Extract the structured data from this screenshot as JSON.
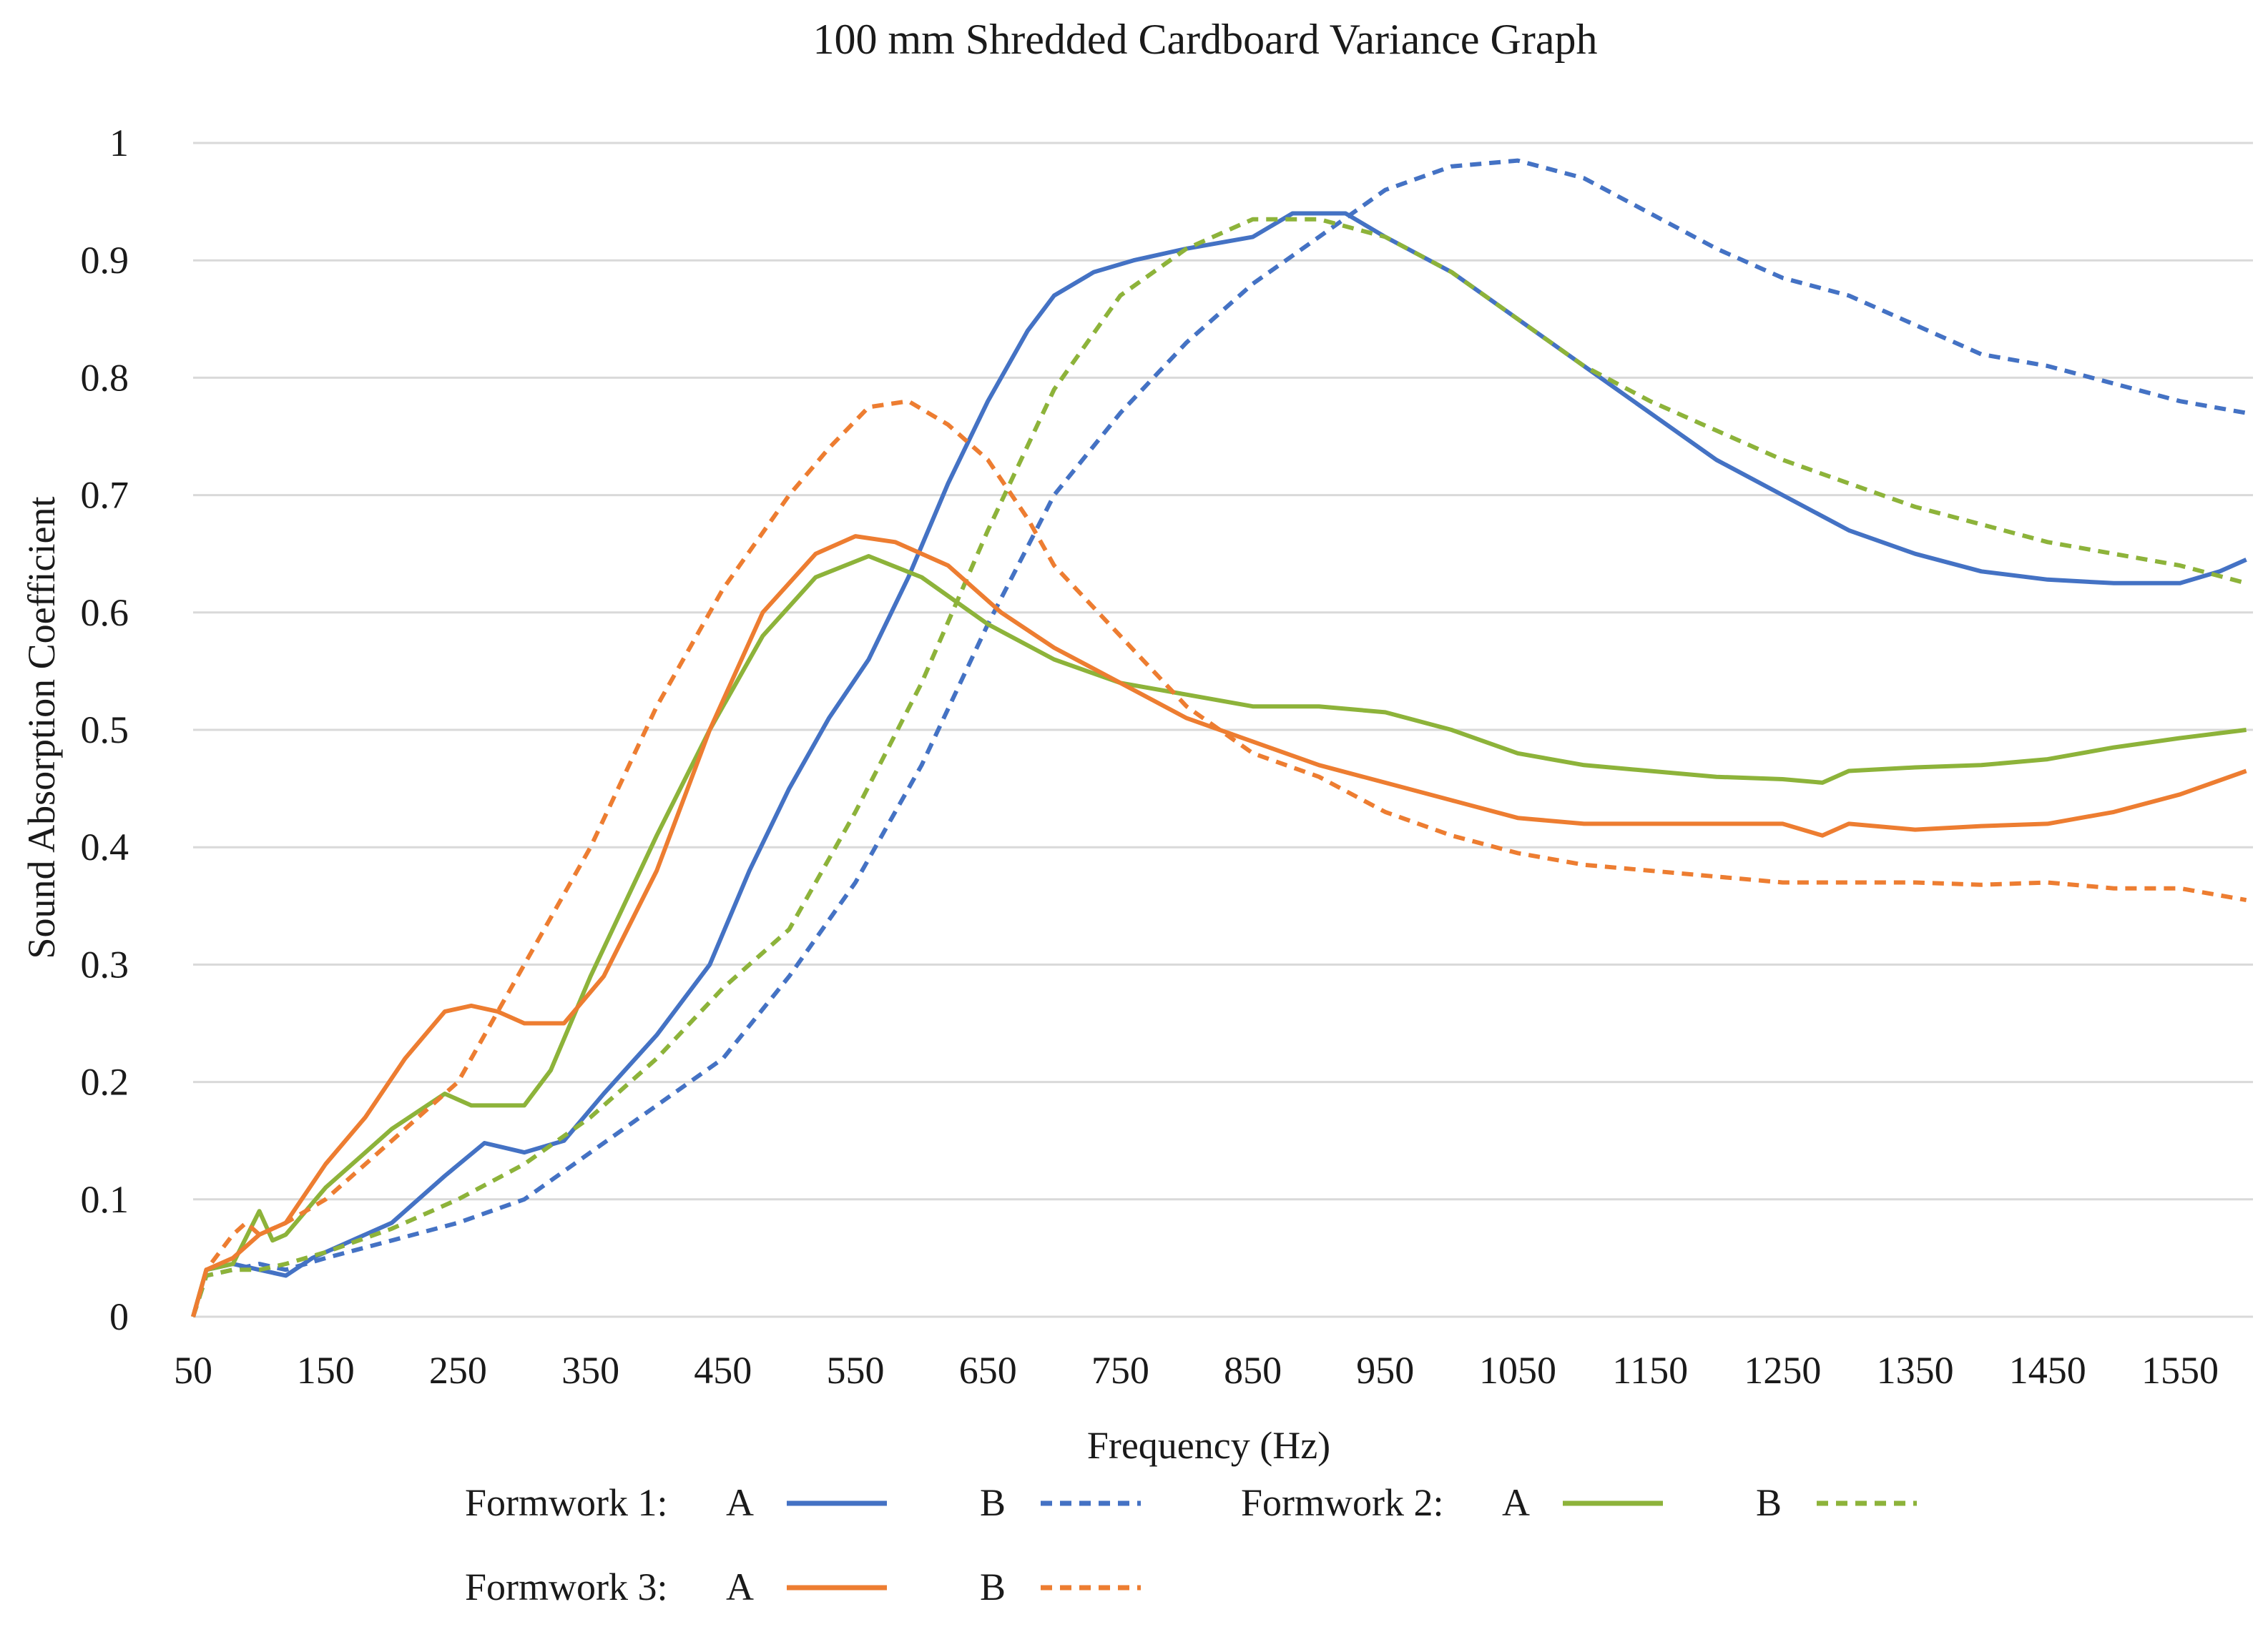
{
  "chart_data": {
    "type": "line",
    "title": "100 mm Shredded Cardboard Variance Graph",
    "xlabel": "Frequency (Hz)",
    "ylabel": "Sound Absorption Coefficient",
    "xlim": [
      50,
      1600
    ],
    "ylim": [
      0,
      1
    ],
    "grid": true,
    "legend_position": "bottom",
    "x_ticks": [
      50,
      150,
      250,
      350,
      450,
      550,
      650,
      750,
      850,
      950,
      1050,
      1150,
      1250,
      1350,
      1450,
      1550
    ],
    "x_tick_labels": [
      "50",
      "150",
      "250",
      "350",
      "450",
      "550",
      "650",
      "750",
      "850",
      "950",
      "1050",
      "1150",
      "1250",
      "1350",
      "1450",
      "1550"
    ],
    "y_ticks": [
      0,
      0.1,
      0.2,
      0.3,
      0.4,
      0.5,
      0.6,
      0.7,
      0.8,
      0.9,
      1
    ],
    "y_tick_labels": [
      "0",
      "0.1",
      "0.2",
      "0.3",
      "0.4",
      "0.5",
      "0.6",
      "0.7",
      "0.8",
      "0.9",
      "1"
    ],
    "legend_groups": [
      {
        "label": "Formwork 1:",
        "items": [
          {
            "label": "A",
            "series": 0
          },
          {
            "label": "B",
            "series": 1
          }
        ]
      },
      {
        "label": "Formwork 2:",
        "items": [
          {
            "label": "A",
            "series": 2
          },
          {
            "label": "B",
            "series": 3
          }
        ]
      },
      {
        "label": "Formwork 3:",
        "items": [
          {
            "label": "A",
            "series": 4
          },
          {
            "label": "B",
            "series": 5
          }
        ]
      }
    ],
    "series": [
      {
        "name": "Formwork 1: A",
        "color": "#4472C4",
        "dash": "solid",
        "x": [
          50,
          60,
          80,
          100,
          120,
          140,
          160,
          200,
          240,
          270,
          300,
          330,
          360,
          400,
          440,
          470,
          500,
          530,
          560,
          590,
          620,
          650,
          680,
          700,
          730,
          760,
          800,
          850,
          880,
          920,
          950,
          1000,
          1050,
          1100,
          1150,
          1200,
          1250,
          1300,
          1350,
          1400,
          1450,
          1500,
          1550,
          1580,
          1600
        ],
        "y": [
          0.0,
          0.04,
          0.045,
          0.04,
          0.035,
          0.05,
          0.06,
          0.08,
          0.12,
          0.148,
          0.14,
          0.15,
          0.19,
          0.24,
          0.3,
          0.38,
          0.45,
          0.51,
          0.56,
          0.63,
          0.71,
          0.78,
          0.84,
          0.87,
          0.89,
          0.9,
          0.91,
          0.92,
          0.94,
          0.94,
          0.92,
          0.89,
          0.85,
          0.81,
          0.77,
          0.73,
          0.7,
          0.67,
          0.65,
          0.635,
          0.628,
          0.625,
          0.625,
          0.635,
          0.645
        ]
      },
      {
        "name": "Formwork 1: B",
        "color": "#4472C4",
        "dash": "dashed",
        "x": [
          50,
          60,
          80,
          100,
          120,
          150,
          200,
          250,
          300,
          350,
          400,
          450,
          500,
          550,
          600,
          650,
          700,
          750,
          800,
          850,
          900,
          950,
          1000,
          1050,
          1100,
          1150,
          1200,
          1250,
          1300,
          1350,
          1400,
          1450,
          1500,
          1550,
          1600
        ],
        "y": [
          0.0,
          0.035,
          0.04,
          0.045,
          0.04,
          0.05,
          0.065,
          0.08,
          0.1,
          0.14,
          0.18,
          0.22,
          0.29,
          0.37,
          0.47,
          0.59,
          0.7,
          0.77,
          0.83,
          0.88,
          0.92,
          0.96,
          0.98,
          0.985,
          0.97,
          0.94,
          0.91,
          0.885,
          0.87,
          0.845,
          0.82,
          0.81,
          0.795,
          0.78,
          0.77
        ]
      },
      {
        "name": "Formwork 2: A",
        "color": "#8DB33A",
        "dash": "solid",
        "x": [
          50,
          60,
          80,
          100,
          110,
          120,
          150,
          200,
          240,
          260,
          300,
          320,
          350,
          400,
          440,
          480,
          520,
          560,
          600,
          650,
          700,
          750,
          800,
          850,
          900,
          950,
          1000,
          1050,
          1100,
          1150,
          1200,
          1250,
          1280,
          1300,
          1350,
          1400,
          1450,
          1500,
          1550,
          1600
        ],
        "y": [
          0.0,
          0.04,
          0.045,
          0.09,
          0.065,
          0.07,
          0.11,
          0.16,
          0.19,
          0.18,
          0.18,
          0.21,
          0.29,
          0.41,
          0.5,
          0.58,
          0.63,
          0.648,
          0.63,
          0.59,
          0.56,
          0.54,
          0.53,
          0.52,
          0.52,
          0.515,
          0.5,
          0.48,
          0.47,
          0.465,
          0.46,
          0.458,
          0.455,
          0.465,
          0.468,
          0.47,
          0.475,
          0.485,
          0.493,
          0.5
        ]
      },
      {
        "name": "Formwork 2: B",
        "color": "#8DB33A",
        "dash": "dashed",
        "x": [
          50,
          60,
          80,
          100,
          120,
          150,
          200,
          250,
          300,
          350,
          400,
          450,
          500,
          550,
          600,
          650,
          700,
          750,
          800,
          850,
          900,
          950,
          1000,
          1050,
          1100,
          1150,
          1200,
          1250,
          1300,
          1350,
          1400,
          1450,
          1500,
          1550,
          1600
        ],
        "y": [
          0.0,
          0.035,
          0.04,
          0.04,
          0.045,
          0.055,
          0.075,
          0.1,
          0.13,
          0.17,
          0.22,
          0.28,
          0.33,
          0.43,
          0.54,
          0.67,
          0.79,
          0.87,
          0.91,
          0.935,
          0.935,
          0.92,
          0.89,
          0.85,
          0.81,
          0.78,
          0.755,
          0.73,
          0.71,
          0.69,
          0.675,
          0.66,
          0.65,
          0.64,
          0.625
        ]
      },
      {
        "name": "Formwork 3: A",
        "color": "#ED7D31",
        "dash": "solid",
        "x": [
          50,
          60,
          80,
          100,
          120,
          150,
          180,
          210,
          240,
          260,
          280,
          300,
          330,
          360,
          400,
          440,
          480,
          520,
          550,
          580,
          620,
          660,
          700,
          750,
          800,
          850,
          900,
          950,
          1000,
          1050,
          1100,
          1150,
          1200,
          1250,
          1280,
          1300,
          1350,
          1400,
          1450,
          1500,
          1550,
          1600
        ],
        "y": [
          0.0,
          0.04,
          0.05,
          0.07,
          0.08,
          0.13,
          0.17,
          0.22,
          0.26,
          0.265,
          0.26,
          0.25,
          0.25,
          0.29,
          0.38,
          0.5,
          0.6,
          0.65,
          0.665,
          0.66,
          0.64,
          0.6,
          0.57,
          0.54,
          0.51,
          0.49,
          0.47,
          0.455,
          0.44,
          0.425,
          0.42,
          0.42,
          0.42,
          0.42,
          0.41,
          0.42,
          0.415,
          0.418,
          0.42,
          0.43,
          0.445,
          0.465
        ]
      },
      {
        "name": "Formwork 3: B",
        "color": "#ED7D31",
        "dash": "dashed",
        "x": [
          50,
          60,
          80,
          90,
          100,
          120,
          150,
          200,
          250,
          300,
          350,
          400,
          450,
          500,
          530,
          560,
          590,
          620,
          650,
          680,
          700,
          750,
          800,
          850,
          900,
          950,
          1000,
          1050,
          1100,
          1150,
          1200,
          1250,
          1300,
          1350,
          1400,
          1450,
          1500,
          1550,
          1600
        ],
        "y": [
          0.0,
          0.04,
          0.07,
          0.08,
          0.07,
          0.08,
          0.1,
          0.15,
          0.2,
          0.3,
          0.4,
          0.52,
          0.62,
          0.7,
          0.74,
          0.775,
          0.78,
          0.76,
          0.73,
          0.68,
          0.64,
          0.58,
          0.52,
          0.48,
          0.46,
          0.43,
          0.41,
          0.395,
          0.385,
          0.38,
          0.375,
          0.37,
          0.37,
          0.37,
          0.368,
          0.37,
          0.365,
          0.365,
          0.355
        ]
      }
    ]
  }
}
